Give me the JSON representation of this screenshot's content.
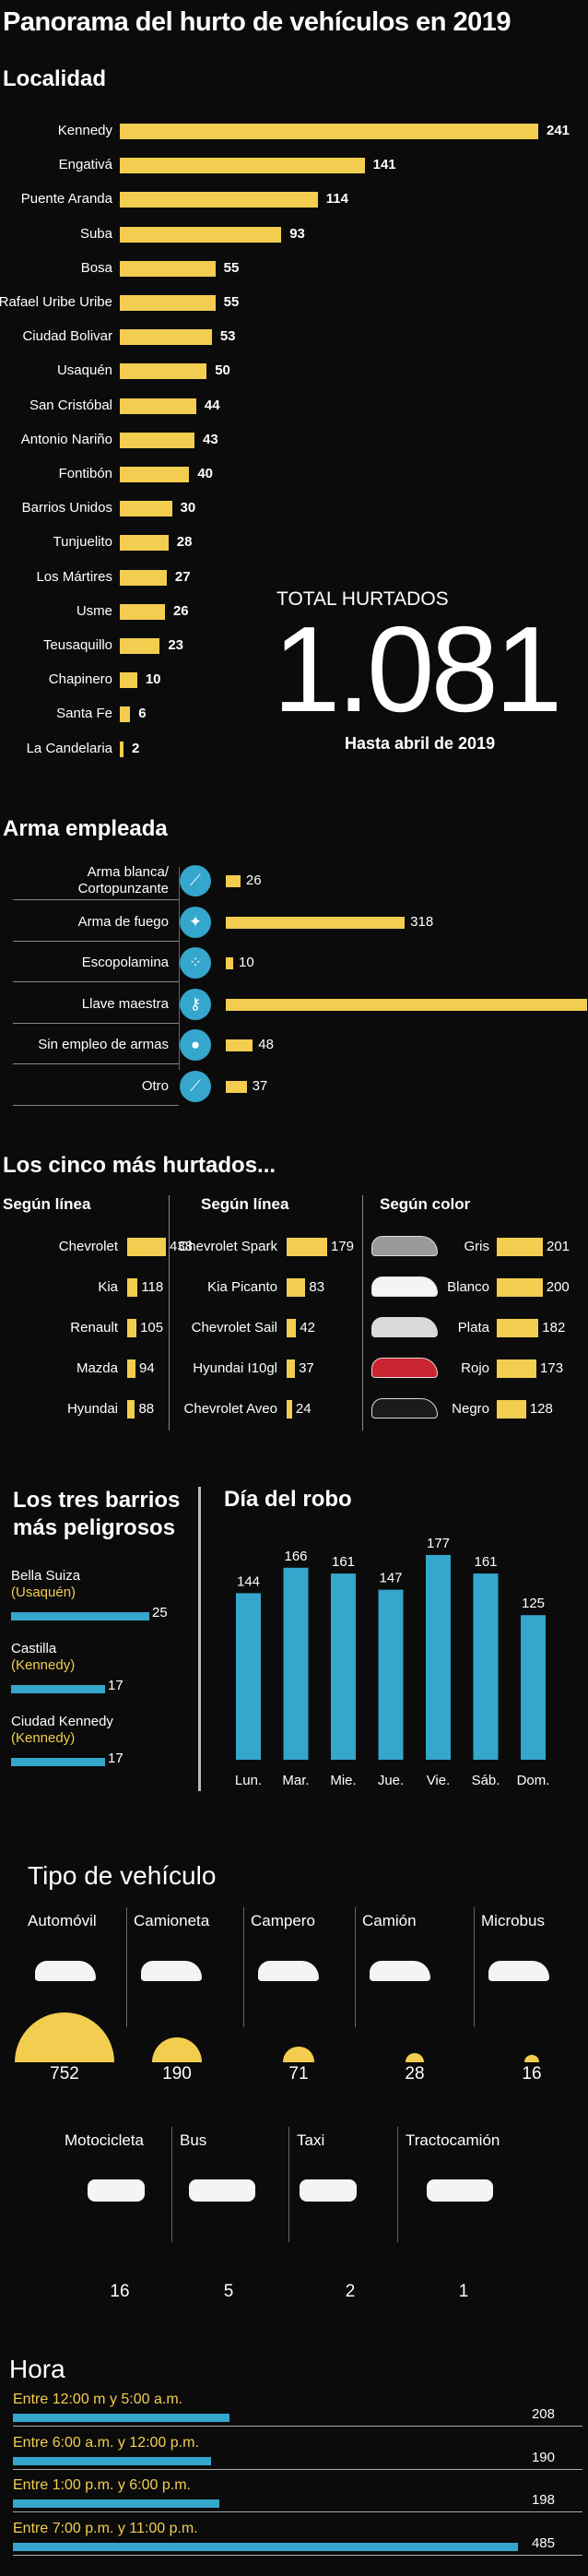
{
  "title": "Panorama del hurto de vehículos en 2019",
  "colors": {
    "yellow": "#f2cd4f",
    "blue": "#35a6cc",
    "background": "#0b0b0b"
  },
  "total": {
    "label": "TOTAL HURTADOS",
    "value": "1.081",
    "note": "Hasta abril de 2019"
  },
  "chart_data": [
    {
      "id": "localidad",
      "type": "bar",
      "title": "Localidad",
      "categories": [
        "Kennedy",
        "Engativá",
        "Puente Aranda",
        "Suba",
        "Bosa",
        "Rafael Uribe Uribe",
        "Ciudad Bolivar",
        "Usaquén",
        "San Cristóbal",
        "Antonio Nariño",
        "Fontibón",
        "Barrios Unidos",
        "Tunjuelito",
        "Los Mártires",
        "Usme",
        "Teusaquillo",
        "Chapinero",
        "Santa Fe",
        "La Candelaria"
      ],
      "values": [
        241,
        141,
        114,
        93,
        55,
        55,
        53,
        50,
        44,
        43,
        40,
        30,
        28,
        27,
        26,
        23,
        10,
        6,
        2
      ]
    },
    {
      "id": "arma",
      "type": "bar",
      "title": "Arma empleada",
      "categories": [
        "Arma blanca/\nCortopunzante",
        "Arma de fuego",
        "Escopolamina",
        "Llave maestra",
        "Sin empleo de armas",
        "Otro"
      ],
      "values": [
        26,
        318,
        10,
        642,
        48,
        37
      ]
    },
    {
      "id": "marca",
      "type": "bar",
      "title": "Según marca",
      "categories": [
        "Chevrolet",
        "Kia",
        "Renault",
        "Mazda",
        "Hyundai"
      ],
      "values": [
        438,
        118,
        105,
        94,
        88
      ]
    },
    {
      "id": "linea",
      "type": "bar",
      "title": "Según línea",
      "categories": [
        "Chevrolet Spark",
        "Kia Picanto",
        "Chevrolet Sail",
        "Hyundai I10gl",
        "Chevrolet Aveo"
      ],
      "values": [
        179,
        83,
        42,
        37,
        24
      ]
    },
    {
      "id": "color",
      "type": "bar",
      "title": "Según color",
      "categories": [
        "Gris",
        "Blanco",
        "Plata",
        "Rojo",
        "Negro"
      ],
      "values": [
        201,
        200,
        182,
        173,
        128
      ]
    },
    {
      "id": "barrios",
      "type": "bar",
      "title": "Los tres barrios más peligrosos",
      "categories": [
        "Bella Suiza",
        "Castilla",
        "Ciudad Kennedy"
      ],
      "localidades": [
        "(Usaquén)",
        "(Kennedy)",
        "(Kennedy)"
      ],
      "values": [
        25,
        17,
        17
      ]
    },
    {
      "id": "dia",
      "type": "bar",
      "title": "Día del robo",
      "categories": [
        "Lun.",
        "Mar.",
        "Mie.",
        "Jue.",
        "Vie.",
        "Sáb.",
        "Dom."
      ],
      "values": [
        144,
        166,
        161,
        147,
        177,
        161,
        125
      ]
    },
    {
      "id": "tipo",
      "type": "bar",
      "title": "Tipo de vehículo",
      "categories": [
        "Automóvil",
        "Camioneta",
        "Campero",
        "Camión",
        "Microbus",
        "Motocicleta",
        "Bus",
        "Taxi",
        "Tractocamión"
      ],
      "values": [
        752,
        190,
        71,
        28,
        16,
        16,
        5,
        2,
        1
      ]
    },
    {
      "id": "hora",
      "type": "bar",
      "title": "Hora",
      "categories": [
        "Entre 12:00 m y 5:00 a.m.",
        "Entre 6:00 a.m. y 12:00 p.m.",
        "Entre 1:00 p.m. y 6:00 p.m.",
        "Entre 7:00 p.m. y 11:00 p.m."
      ],
      "values": [
        208,
        190,
        198,
        485
      ]
    }
  ],
  "sections": {
    "top5": "Los cinco más hurtados..."
  }
}
